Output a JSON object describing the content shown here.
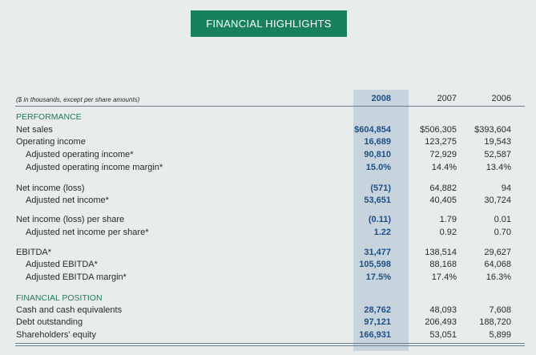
{
  "banner_title": "FINANCIAL HIGHLIGHTS",
  "units_note": "($ in thousands, except per share amounts)",
  "columns": [
    "2008",
    "2007",
    "2006"
  ],
  "rows": [
    {
      "type": "section",
      "label": "PERFORMANCE"
    },
    {
      "label": "Net sales",
      "indent": false,
      "values": [
        "$604,854",
        "$506,305",
        "$393,604"
      ]
    },
    {
      "label": "Operating income",
      "indent": false,
      "values": [
        "16,689",
        "123,275",
        "19,543"
      ]
    },
    {
      "label": "Adjusted operating income*",
      "indent": true,
      "values": [
        "90,810",
        "72,929",
        "52,587"
      ]
    },
    {
      "label": "Adjusted operating income margin*",
      "indent": true,
      "values": [
        "15.0%",
        "14.4%",
        "13.4%"
      ]
    },
    {
      "label": "Net income (loss)",
      "indent": false,
      "values": [
        "(571)",
        "64,882",
        "94"
      ]
    },
    {
      "label": "Adjusted net income*",
      "indent": true,
      "values": [
        "53,651",
        "40,405",
        "30,724"
      ]
    },
    {
      "label": "Net income (loss) per share",
      "indent": false,
      "values": [
        "(0.11)",
        "1.79",
        "0.01"
      ]
    },
    {
      "label": "Adjusted net income per share*",
      "indent": true,
      "values": [
        "1.22",
        "0.92",
        "0.70"
      ]
    },
    {
      "label": "EBITDA*",
      "indent": false,
      "values": [
        "31,477",
        "138,514",
        "29,627"
      ]
    },
    {
      "label": "Adjusted EBITDA*",
      "indent": true,
      "values": [
        "105,598",
        "88,168",
        "64,068"
      ]
    },
    {
      "label": "Adjusted EBITDA margin*",
      "indent": true,
      "values": [
        "17.5%",
        "17.4%",
        "16.3%"
      ]
    },
    {
      "type": "section",
      "label": "FINANCIAL POSITION"
    },
    {
      "label": "Cash and cash equivalents",
      "indent": false,
      "values": [
        "28,762",
        "48,093",
        "7,608"
      ]
    },
    {
      "label": "Debt outstanding",
      "indent": false,
      "values": [
        "97,121",
        "206,493",
        "188,720"
      ]
    },
    {
      "label": "Shareholders' equity",
      "indent": false,
      "values": [
        "166,931",
        "53,051",
        "5,899"
      ]
    }
  ],
  "colors": {
    "banner": "#16805f",
    "highlight_column": "#c7d4dd",
    "emphasis_text": "#1d4f86",
    "section_text": "#1f7a5c"
  }
}
